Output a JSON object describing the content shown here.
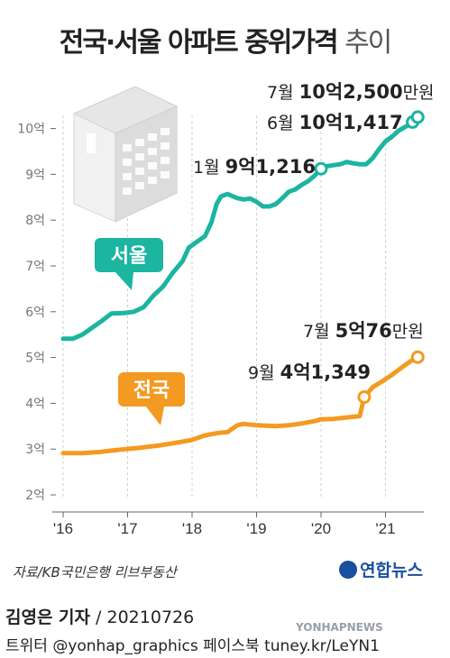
{
  "title_main": "전국·서울 아파트 중위가격",
  "title_light": "추이",
  "colors": {
    "seoul": "#1bb5a0",
    "national": "#f39a22",
    "grid": "#cfcfcf",
    "axis": "#666666"
  },
  "chart_data": {
    "type": "line",
    "title": "전국·서울 아파트 중위가격 추이",
    "x_ticks": [
      "'16",
      "'17",
      "'18",
      "'19",
      "'20",
      "'21"
    ],
    "x_tick_values": [
      2016.0,
      2017.0,
      2018.0,
      2019.0,
      2020.0,
      2021.0
    ],
    "y_ticks": [
      "2억",
      "3억",
      "4억",
      "5억",
      "6억",
      "7억",
      "8억",
      "9억",
      "10억"
    ],
    "y_tick_values": [
      2,
      3,
      4,
      5,
      6,
      7,
      8,
      9,
      10
    ],
    "ylim": [
      2,
      10.6
    ],
    "xlim": [
      2015.9,
      2021.6
    ],
    "grid": "vertical",
    "series": [
      {
        "name": "서울",
        "color": "#1bb5a0",
        "points": [
          [
            2016.0,
            5.41
          ],
          [
            2016.15,
            5.41
          ],
          [
            2016.3,
            5.5
          ],
          [
            2016.45,
            5.65
          ],
          [
            2016.6,
            5.8
          ],
          [
            2016.75,
            5.96
          ],
          [
            2016.95,
            5.97
          ],
          [
            2017.1,
            6.0
          ],
          [
            2017.25,
            6.1
          ],
          [
            2017.4,
            6.35
          ],
          [
            2017.55,
            6.55
          ],
          [
            2017.7,
            6.85
          ],
          [
            2017.85,
            7.1
          ],
          [
            2017.95,
            7.4
          ],
          [
            2018.1,
            7.55
          ],
          [
            2018.2,
            7.65
          ],
          [
            2018.3,
            7.95
          ],
          [
            2018.38,
            8.35
          ],
          [
            2018.45,
            8.52
          ],
          [
            2018.55,
            8.57
          ],
          [
            2018.7,
            8.48
          ],
          [
            2018.8,
            8.45
          ],
          [
            2018.9,
            8.47
          ],
          [
            2019.0,
            8.4
          ],
          [
            2019.1,
            8.3
          ],
          [
            2019.2,
            8.3
          ],
          [
            2019.3,
            8.35
          ],
          [
            2019.4,
            8.48
          ],
          [
            2019.5,
            8.62
          ],
          [
            2019.6,
            8.67
          ],
          [
            2019.7,
            8.77
          ],
          [
            2019.8,
            8.85
          ],
          [
            2019.9,
            8.97
          ],
          [
            2020.0,
            9.1216
          ],
          [
            2020.1,
            9.18
          ],
          [
            2020.2,
            9.2
          ],
          [
            2020.3,
            9.22
          ],
          [
            2020.4,
            9.27
          ],
          [
            2020.5,
            9.24
          ],
          [
            2020.6,
            9.22
          ],
          [
            2020.7,
            9.22
          ],
          [
            2020.8,
            9.35
          ],
          [
            2020.9,
            9.55
          ],
          [
            2021.0,
            9.72
          ],
          [
            2021.1,
            9.82
          ],
          [
            2021.2,
            9.95
          ],
          [
            2021.35,
            10.07
          ],
          [
            2021.42,
            10.1417
          ],
          [
            2021.5,
            10.25
          ]
        ]
      },
      {
        "name": "전국",
        "color": "#f39a22",
        "points": [
          [
            2016.0,
            2.91
          ],
          [
            2016.3,
            2.91
          ],
          [
            2016.6,
            2.94
          ],
          [
            2016.9,
            2.99
          ],
          [
            2017.2,
            3.03
          ],
          [
            2017.5,
            3.08
          ],
          [
            2017.8,
            3.15
          ],
          [
            2018.0,
            3.2
          ],
          [
            2018.2,
            3.3
          ],
          [
            2018.4,
            3.35
          ],
          [
            2018.55,
            3.37
          ],
          [
            2018.7,
            3.52
          ],
          [
            2018.8,
            3.55
          ],
          [
            2019.0,
            3.52
          ],
          [
            2019.3,
            3.5
          ],
          [
            2019.5,
            3.52
          ],
          [
            2019.7,
            3.56
          ],
          [
            2019.9,
            3.61
          ],
          [
            2020.0,
            3.65
          ],
          [
            2020.2,
            3.66
          ],
          [
            2020.4,
            3.69
          ],
          [
            2020.6,
            3.72
          ],
          [
            2020.67,
            4.1349
          ],
          [
            2020.8,
            4.35
          ],
          [
            2020.95,
            4.48
          ],
          [
            2021.1,
            4.62
          ],
          [
            2021.25,
            4.78
          ],
          [
            2021.4,
            4.93
          ],
          [
            2021.5,
            5.0076
          ]
        ]
      }
    ],
    "annotations": [
      {
        "series": "서울",
        "x": 2020.0,
        "y": 9.1216,
        "text_a": "1월 ",
        "text_b": "9억1,216"
      },
      {
        "series": "서울",
        "x": 2021.42,
        "y": 10.1417,
        "text_a": "6월 ",
        "text_b": "10억1,417"
      },
      {
        "series": "서울",
        "x": 2021.5,
        "y": 10.25,
        "text_a": "7월 ",
        "text_b": "10억2,500",
        "text_c": "만원"
      },
      {
        "series": "전국",
        "x": 2020.67,
        "y": 4.1349,
        "text_a": "9월 ",
        "text_b": "4억1,349"
      },
      {
        "series": "전국",
        "x": 2021.5,
        "y": 5.0076,
        "text_a": "7월 ",
        "text_b": "5억76",
        "text_c": "만원"
      }
    ],
    "series_labels": [
      "서울",
      "전국"
    ]
  },
  "source": "자료/KB국민은행 리브부동산",
  "logo_text": "연합뉴스",
  "credit_name": "김영은 기자",
  "credit_date": " / 20210726",
  "footer_text": "트위터 @yonhap_graphics  페이스북 tuney.kr/LeYN1",
  "watermark": "YONHAPNEWS"
}
